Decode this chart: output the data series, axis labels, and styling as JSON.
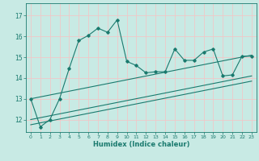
{
  "xlabel": "Humidex (Indice chaleur)",
  "xlim": [
    -0.5,
    23.5
  ],
  "ylim": [
    11.4,
    17.6
  ],
  "yticks": [
    12,
    13,
    14,
    15,
    16,
    17
  ],
  "xticks": [
    0,
    1,
    2,
    3,
    4,
    5,
    6,
    7,
    8,
    9,
    10,
    11,
    12,
    13,
    14,
    15,
    16,
    17,
    18,
    19,
    20,
    21,
    22,
    23
  ],
  "bg_color": "#c8eae4",
  "grid_color": "#f0c8c8",
  "line_color": "#1a7a6e",
  "line1_x": [
    0,
    1,
    2,
    3,
    4,
    5,
    6,
    7,
    8,
    9,
    10,
    11,
    12,
    13,
    14,
    15,
    16,
    17,
    18,
    19,
    20,
    21,
    22,
    23
  ],
  "line1_y": [
    13.0,
    11.65,
    12.0,
    13.0,
    14.45,
    15.8,
    16.05,
    16.4,
    16.2,
    16.8,
    14.8,
    14.6,
    14.25,
    14.3,
    14.3,
    15.4,
    14.85,
    14.85,
    15.25,
    15.4,
    14.1,
    14.15,
    15.05,
    15.05
  ],
  "line2_x": [
    0,
    23
  ],
  "line2_y": [
    13.0,
    15.1
  ],
  "line3_x": [
    0,
    23
  ],
  "line3_y": [
    12.0,
    14.1
  ],
  "line4_x": [
    0,
    23
  ],
  "line4_y": [
    11.75,
    13.85
  ],
  "marker_x": [
    0,
    1,
    2,
    3,
    4,
    5,
    6,
    7,
    8,
    9,
    10,
    11,
    12,
    13,
    14,
    15,
    16,
    17,
    18,
    19,
    20,
    21,
    22,
    23
  ],
  "marker_y": [
    13.0,
    11.65,
    12.0,
    13.0,
    14.45,
    15.8,
    16.05,
    16.4,
    16.2,
    16.8,
    14.8,
    14.6,
    14.25,
    14.3,
    14.3,
    15.4,
    14.85,
    14.85,
    15.25,
    15.4,
    14.1,
    14.15,
    15.05,
    15.05
  ]
}
